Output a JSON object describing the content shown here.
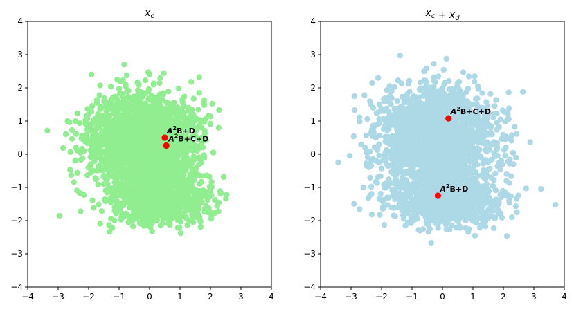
{
  "chart_data": [
    {
      "type": "scatter",
      "title": "x_c",
      "title_parts": [
        {
          "text": "x",
          "sub": "c"
        }
      ],
      "xlim": [
        -4,
        4
      ],
      "ylim": [
        -4,
        4
      ],
      "xticks": [
        -4,
        -3,
        -2,
        -1,
        0,
        1,
        2,
        3,
        4
      ],
      "yticks": [
        -4,
        -3,
        -2,
        -1,
        0,
        1,
        2,
        3,
        4
      ],
      "grid": false,
      "point_color": "#90ee90",
      "cloud": {
        "n": 3000,
        "clusters": [
          {
            "cx": -0.2,
            "cy": 0.35,
            "sx": 0.85,
            "sy": 0.7,
            "w": 0.72
          },
          {
            "cx": 0.35,
            "cy": -1.35,
            "sx": 0.85,
            "sy": 0.38,
            "w": 0.28
          }
        ]
      },
      "highlights": [
        {
          "x": 0.5,
          "y": 0.5,
          "label": "B+D",
          "color": "#ff0000"
        },
        {
          "x": 0.55,
          "y": 0.26,
          "label": "B+C+D",
          "color": "#ff0000"
        }
      ],
      "label_prefix": "A",
      "label_power": "2"
    },
    {
      "type": "scatter",
      "title": "x_c + x_d",
      "title_parts": [
        {
          "text": "x",
          "sub": "c"
        },
        {
          "text": " + "
        },
        {
          "text": "x",
          "sub": "d"
        }
      ],
      "xlim": [
        -4,
        4
      ],
      "ylim": [
        -4,
        4
      ],
      "xticks": [
        -4,
        -3,
        -2,
        -1,
        0,
        1,
        2,
        3,
        4
      ],
      "yticks": [
        -4,
        -3,
        -2,
        -1,
        0,
        1,
        2,
        3,
        4
      ],
      "grid": false,
      "point_color": "#add8e6",
      "cloud": {
        "n": 3000,
        "clusters": [
          {
            "cx": -0.2,
            "cy": 0.45,
            "sx": 0.95,
            "sy": 0.75,
            "w": 0.7
          },
          {
            "cx": 0.15,
            "cy": -1.45,
            "sx": 0.9,
            "sy": 0.36,
            "w": 0.3
          }
        ]
      },
      "highlights": [
        {
          "x": 0.2,
          "y": 1.08,
          "label": "B+C+D",
          "color": "#ff0000"
        },
        {
          "x": -0.15,
          "y": -1.25,
          "label": "B+D",
          "color": "#ff0000"
        }
      ],
      "label_prefix": "A",
      "label_power": "2"
    }
  ]
}
